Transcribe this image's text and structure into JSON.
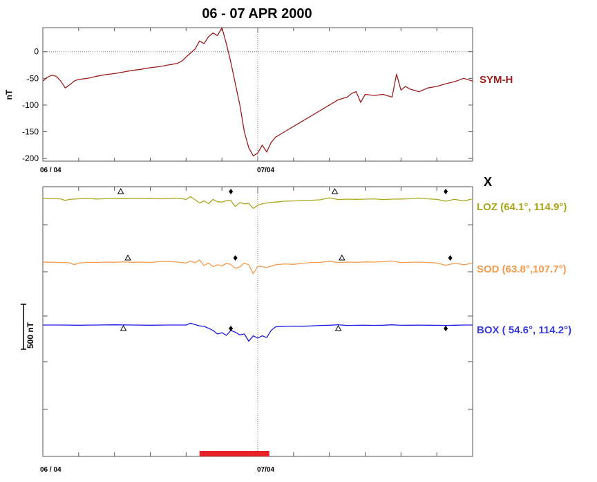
{
  "title": "06 - 07 APR 2000",
  "colors": {
    "sym_h": "#9b1c1c",
    "loz": "#aaa61a",
    "sod": "#f39a4c",
    "box": "#1a1ae0",
    "interval_bar": "#e8202a"
  },
  "chart_data": [
    {
      "type": "line",
      "ylabel": "nT",
      "ylim": [
        -205,
        45
      ],
      "yticks": [
        0,
        -50,
        -100,
        -150,
        -200
      ],
      "ytick_labels": [
        "0",
        "-50",
        "-100",
        "-150",
        "-200"
      ],
      "xlim": [
        0,
        48
      ],
      "xtick_labels": [
        "06 / 04",
        "07/04"
      ],
      "grid": "dotted zero line and day boundary",
      "series": [
        {
          "name": "SYM-H",
          "x": [
            0,
            0.5,
            1,
            1.5,
            2,
            2.5,
            3,
            3.5,
            4,
            5,
            6,
            7,
            8,
            9,
            10,
            11,
            12,
            13,
            14,
            15,
            15.5,
            16,
            17,
            17.5,
            18,
            18.5,
            19,
            19.5,
            20,
            20.5,
            21,
            21.5,
            22,
            22.5,
            23,
            23.5,
            24,
            24.5,
            25,
            25.5,
            26,
            27,
            28,
            29,
            30,
            31,
            32,
            33,
            34,
            34.5,
            35,
            35.5,
            36,
            37,
            38,
            39,
            39.5,
            40,
            40.5,
            41,
            42,
            43,
            44,
            45,
            46,
            47,
            48
          ],
          "y": [
            -55,
            -48,
            -44,
            -46,
            -55,
            -68,
            -62,
            -55,
            -52,
            -50,
            -46,
            -43,
            -41,
            -38,
            -35,
            -33,
            -30,
            -28,
            -25,
            -22,
            -18,
            -10,
            5,
            20,
            15,
            28,
            35,
            30,
            45,
            15,
            -20,
            -60,
            -100,
            -150,
            -180,
            -195,
            -190,
            -175,
            -188,
            -170,
            -160,
            -150,
            -140,
            -130,
            -120,
            -110,
            -100,
            -90,
            -85,
            -78,
            -75,
            -95,
            -80,
            -82,
            -80,
            -85,
            -42,
            -72,
            -65,
            -70,
            -75,
            -68,
            -65,
            -60,
            -56,
            -50,
            -55
          ]
        }
      ]
    },
    {
      "type": "line",
      "ylabel": "500 nT",
      "xlim": [
        0,
        48
      ],
      "xtick_labels": [
        "06 / 04",
        "07/04"
      ],
      "corner_label": "X",
      "series": [
        {
          "name": "LOZ (64.1°, 114.9°)",
          "x": [
            0,
            1,
            2,
            2.5,
            3,
            4,
            5,
            6,
            7,
            8,
            9,
            10,
            11,
            12,
            13,
            14,
            15,
            16,
            16.5,
            17,
            17.5,
            18,
            18.5,
            19,
            19.5,
            20,
            20.5,
            21,
            21.5,
            22,
            22.5,
            23,
            23.5,
            24,
            24.5,
            25,
            26,
            27,
            28,
            29,
            30,
            31,
            32,
            33,
            34,
            35,
            36,
            37,
            38,
            39,
            40,
            41,
            42,
            43,
            44,
            45,
            46,
            47,
            48
          ],
          "y": [
            0,
            -3,
            -5,
            -22,
            -10,
            -4,
            0,
            -6,
            -3,
            0,
            -2,
            3,
            0,
            2,
            -4,
            -2,
            5,
            -10,
            20,
            -15,
            -50,
            -25,
            -58,
            -10,
            -36,
            -40,
            -25,
            -22,
            -90,
            -45,
            -60,
            -55,
            -110,
            -75,
            -60,
            -50,
            -40,
            -30,
            -28,
            -22,
            -20,
            -15,
            8,
            -12,
            -8,
            -10,
            -8,
            -5,
            -12,
            -8,
            -6,
            -4,
            5,
            -5,
            -10,
            -30,
            -10,
            -28,
            -5
          ]
        },
        {
          "name": "SOD (63.8°,107.7°)",
          "x": [
            0,
            1,
            2,
            3,
            3.5,
            4,
            5,
            6,
            7,
            8,
            9,
            10,
            11,
            12,
            13,
            14,
            15,
            16,
            16.5,
            17,
            17.5,
            18,
            18.5,
            19,
            19.5,
            20,
            20.5,
            21,
            21.5,
            22,
            22.5,
            23,
            23.5,
            24,
            24.5,
            25,
            26,
            27,
            28,
            29,
            30,
            31,
            32,
            33,
            34,
            35,
            36,
            37,
            38,
            39,
            40,
            41,
            42,
            43,
            44,
            45,
            46,
            47,
            48
          ],
          "y": [
            0,
            -2,
            -5,
            -8,
            -28,
            -10,
            -3,
            -4,
            0,
            -2,
            3,
            -2,
            0,
            -4,
            5,
            8,
            0,
            -10,
            12,
            -8,
            25,
            -38,
            -10,
            -50,
            -30,
            -42,
            -15,
            -25,
            -70,
            -55,
            -10,
            -30,
            -130,
            -45,
            -50,
            -60,
            -30,
            -20,
            -25,
            -12,
            -5,
            -3,
            10,
            -5,
            0,
            -3,
            2,
            0,
            5,
            12,
            -5,
            -3,
            0,
            -5,
            -10,
            -35,
            -12,
            -30,
            -12
          ]
        },
        {
          "name": "BOX ( 54.6°, 114.2°)",
          "x": [
            0,
            2,
            4,
            6,
            8,
            10,
            12,
            14,
            16,
            16.5,
            17,
            17.5,
            18,
            18.5,
            19,
            19.5,
            20,
            20.5,
            21,
            21.5,
            22,
            22.5,
            23,
            23.5,
            24,
            24.5,
            25,
            25.5,
            26,
            27,
            28,
            29,
            30,
            31,
            32,
            33,
            34,
            35,
            36,
            37,
            38,
            39,
            40,
            41,
            42,
            43,
            44,
            45,
            46,
            47,
            48
          ],
          "y": [
            0,
            0,
            -2,
            0,
            2,
            0,
            -2,
            0,
            0,
            20,
            5,
            -10,
            -15,
            -35,
            -60,
            -100,
            -85,
            -115,
            -60,
            -80,
            -110,
            -100,
            -180,
            -120,
            -145,
            -120,
            -140,
            -60,
            -20,
            -15,
            -12,
            -14,
            -10,
            -5,
            -2,
            3,
            -5,
            -3,
            -2,
            -4,
            -2,
            2,
            -3,
            -2,
            -1,
            -2,
            -3,
            -5,
            -2,
            0,
            0
          ]
        }
      ],
      "markers": [
        {
          "station": "LOZ",
          "symbol": "open-triangle",
          "x": 8.7
        },
        {
          "station": "LOZ",
          "symbol": "filled-diamond",
          "x": 21
        },
        {
          "station": "LOZ",
          "symbol": "open-triangle",
          "x": 32.6
        },
        {
          "station": "LOZ",
          "symbol": "filled-diamond",
          "x": 45
        },
        {
          "station": "SOD",
          "symbol": "open-triangle",
          "x": 9.5
        },
        {
          "station": "SOD",
          "symbol": "filled-diamond",
          "x": 21.5
        },
        {
          "station": "SOD",
          "symbol": "open-triangle",
          "x": 33.4
        },
        {
          "station": "SOD",
          "symbol": "filled-diamond",
          "x": 45.5
        },
        {
          "station": "BOX",
          "symbol": "open-triangle",
          "x": 9
        },
        {
          "station": "BOX",
          "symbol": "filled-diamond",
          "x": 21
        },
        {
          "station": "BOX",
          "symbol": "open-triangle",
          "x": 33
        },
        {
          "station": "BOX",
          "symbol": "filled-diamond",
          "x": 45
        }
      ],
      "interval_bar": {
        "x_start": 17.5,
        "x_end": 25.3
      }
    }
  ]
}
